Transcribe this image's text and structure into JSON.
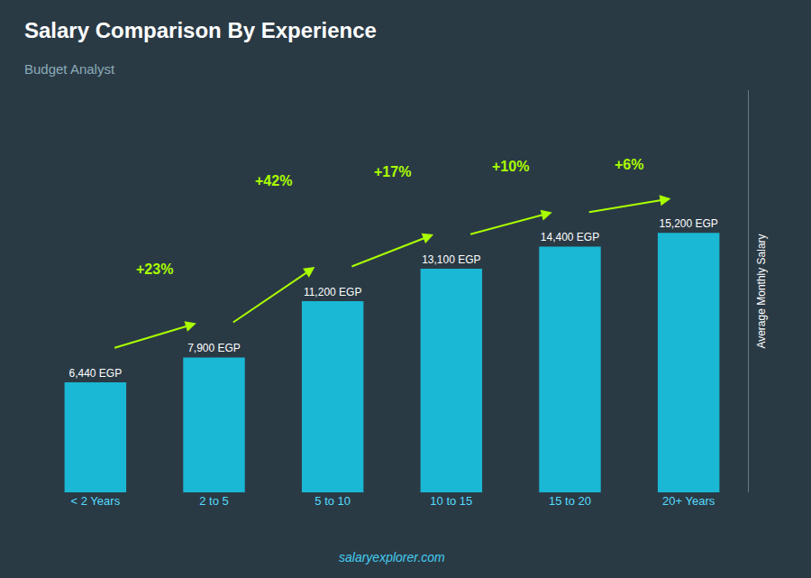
{
  "chart_data": {
    "type": "bar",
    "title": "Salary Comparison By Experience",
    "subtitle": "Budget Analyst",
    "ylabel": "Average Monthly Salary",
    "watermark": "salaryexplorer.com",
    "categories": [
      "< 2 Years",
      "2 to 5",
      "5 to 10",
      "10 to 15",
      "15 to 20",
      "20+ Years"
    ],
    "values": [
      6440,
      7900,
      11200,
      13100,
      14400,
      15200
    ],
    "value_labels": [
      "6,440 EGP",
      "7,900 EGP",
      "11,200 EGP",
      "13,100 EGP",
      "14,400 EGP",
      "15,200 EGP"
    ],
    "data_labels": true,
    "annotations": [
      null,
      "+23%",
      "+42%",
      "+17%",
      "+10%",
      "+6%"
    ],
    "color": "#1ab8d4",
    "ylim": [
      0,
      23560
    ],
    "grid": false,
    "tick_labels": "x"
  }
}
